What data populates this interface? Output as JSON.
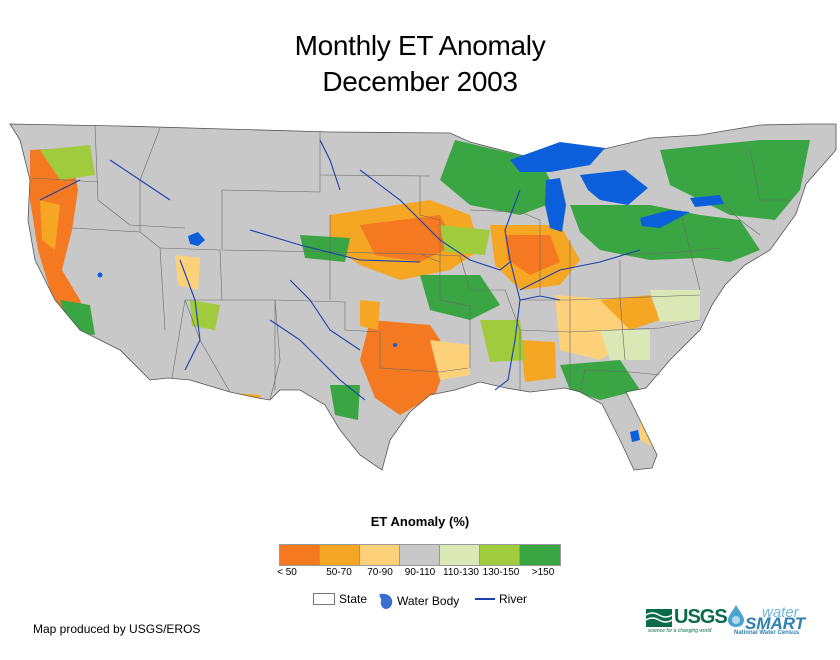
{
  "title": {
    "line1": "Monthly ET Anomaly",
    "line2": "December 2003"
  },
  "legend": {
    "title": "ET Anomaly (%)",
    "classes": [
      {
        "label": "< 50",
        "color": "#f47920"
      },
      {
        "label": "50-70",
        "color": "#f5a623"
      },
      {
        "label": "70-90",
        "color": "#fdd17a"
      },
      {
        "label": "90-110",
        "color": "#c8c8c8"
      },
      {
        "label": "110-130",
        "color": "#dbe8b5"
      },
      {
        "label": "130-150",
        "color": "#9fcb3c"
      },
      {
        "label": ">150",
        "color": "#3aa543"
      }
    ]
  },
  "reference": {
    "state": "State",
    "water": "Water Body",
    "river": "River"
  },
  "colors": {
    "water": "#0b5fdb",
    "river": "#1a3fb0",
    "neutral": "#c8c8c8",
    "outside": "#ffffff"
  },
  "credit": "Map produced by USGS/EROS",
  "logos": {
    "usgs": "USGS",
    "usgs_tagline": "science for a changing world",
    "water": "water",
    "smart": "SMART",
    "census": "National Water Census"
  }
}
